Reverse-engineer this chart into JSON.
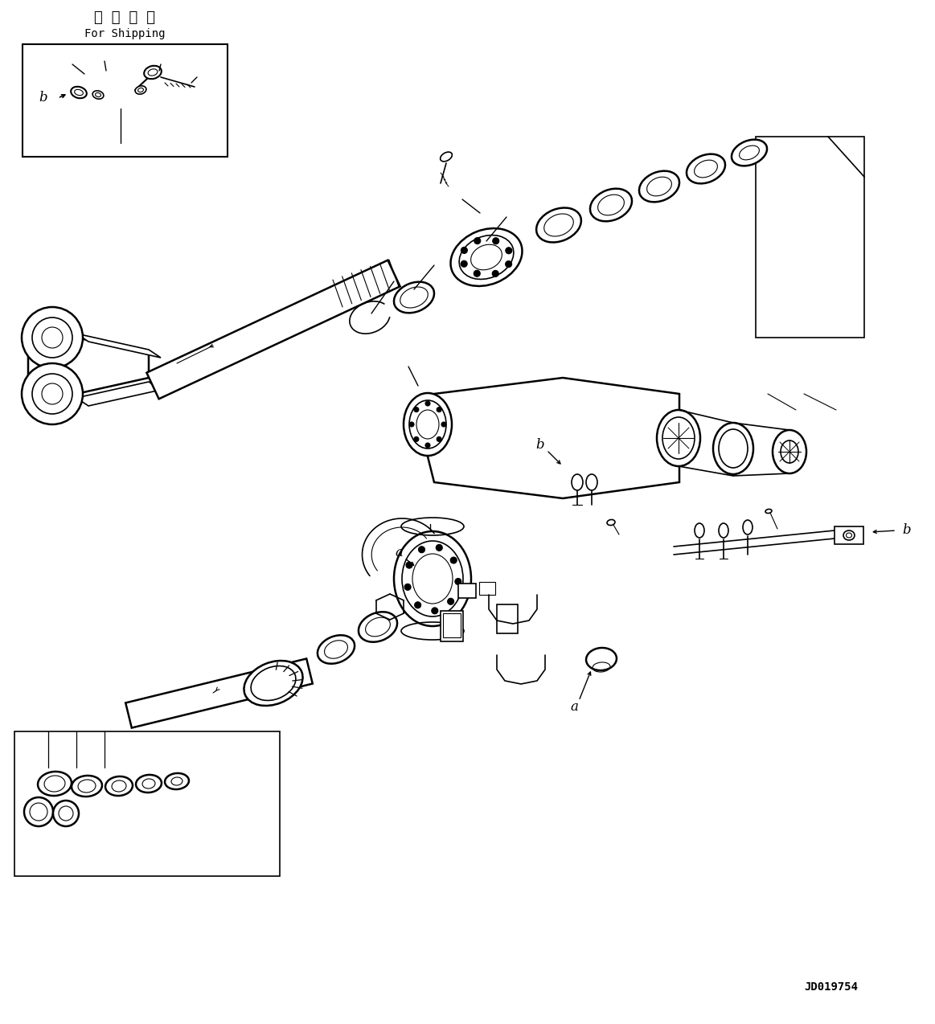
{
  "title_jp": "運 搬 部 品",
  "title_en": "For Shipping",
  "part_number": "JD019754",
  "bg_color": "#ffffff",
  "line_color": "#000000",
  "figsize": [
    11.63,
    12.74
  ],
  "dpi": 100
}
